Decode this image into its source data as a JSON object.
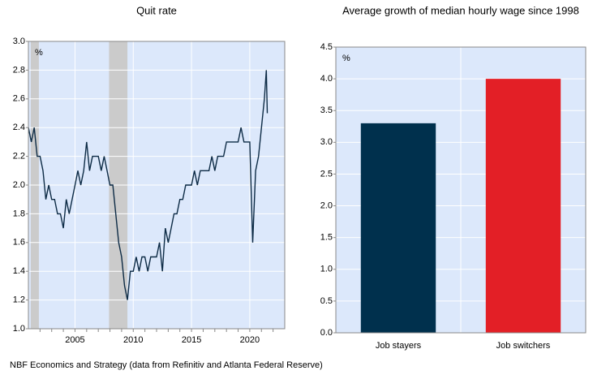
{
  "chart_data": [
    {
      "type": "line",
      "title": "Quit rate",
      "unit_label": "%",
      "xlim": [
        2001,
        2023
      ],
      "xticks": [
        2005,
        2010,
        2015,
        2020
      ],
      "xminor_ticks": [
        2002,
        2003,
        2004,
        2005,
        2006,
        2007,
        2008,
        2009,
        2010,
        2011,
        2012,
        2013,
        2014,
        2015,
        2016,
        2017,
        2018,
        2019,
        2020,
        2021,
        2022
      ],
      "ylim": [
        1,
        3
      ],
      "yticks": [
        {
          "value": 1,
          "label": "1.0"
        },
        1.2,
        1.4,
        1.6,
        1.8,
        {
          "value": 2,
          "label": "2.0"
        },
        2.2,
        2.4,
        2.6,
        2.8,
        {
          "value": 3,
          "label": "3.0"
        }
      ],
      "grid": true,
      "background": "#dce8fb",
      "shaded_spans": [
        [
          2001.2,
          2001.9
        ],
        [
          2007.92,
          2009.5
        ]
      ],
      "shade_color": "#cbcbcb",
      "series": [
        {
          "color": "#0d2b45",
          "x": [
            2001.0,
            2001.25,
            2001.5,
            2001.75,
            2002.0,
            2002.25,
            2002.5,
            2002.75,
            2003.0,
            2003.25,
            2003.5,
            2003.75,
            2004.0,
            2004.25,
            2004.5,
            2004.75,
            2005.0,
            2005.25,
            2005.5,
            2005.75,
            2006.0,
            2006.25,
            2006.5,
            2006.75,
            2007.0,
            2007.25,
            2007.5,
            2007.75,
            2008.0,
            2008.25,
            2008.5,
            2008.75,
            2009.0,
            2009.25,
            2009.5,
            2009.75,
            2010.0,
            2010.25,
            2010.5,
            2010.75,
            2011.0,
            2011.25,
            2011.5,
            2011.75,
            2012.0,
            2012.25,
            2012.5,
            2012.75,
            2013.0,
            2013.25,
            2013.5,
            2013.75,
            2014.0,
            2014.25,
            2014.5,
            2014.75,
            2015.0,
            2015.25,
            2015.5,
            2015.75,
            2016.0,
            2016.25,
            2016.5,
            2016.75,
            2017.0,
            2017.25,
            2017.5,
            2017.75,
            2018.0,
            2018.25,
            2018.5,
            2018.75,
            2019.0,
            2019.25,
            2019.5,
            2019.75,
            2020.0,
            2020.25,
            2020.5,
            2020.75,
            2021.0,
            2021.25,
            2021.42,
            2021.5
          ],
          "values": [
            2.4,
            2.3,
            2.4,
            2.2,
            2.2,
            2.1,
            1.9,
            2.0,
            1.9,
            1.9,
            1.8,
            1.8,
            1.7,
            1.9,
            1.8,
            1.9,
            2.0,
            2.1,
            2.0,
            2.1,
            2.3,
            2.1,
            2.2,
            2.2,
            2.2,
            2.1,
            2.2,
            2.1,
            2.0,
            2.0,
            1.8,
            1.6,
            1.5,
            1.3,
            1.2,
            1.4,
            1.4,
            1.5,
            1.4,
            1.5,
            1.5,
            1.4,
            1.5,
            1.5,
            1.5,
            1.6,
            1.4,
            1.7,
            1.6,
            1.7,
            1.8,
            1.8,
            1.9,
            1.9,
            2.0,
            2.0,
            2.0,
            2.1,
            2.0,
            2.1,
            2.1,
            2.1,
            2.1,
            2.2,
            2.1,
            2.2,
            2.2,
            2.2,
            2.3,
            2.3,
            2.3,
            2.3,
            2.3,
            2.4,
            2.3,
            2.3,
            2.3,
            1.6,
            2.1,
            2.2,
            2.4,
            2.6,
            2.8,
            2.5
          ]
        }
      ]
    },
    {
      "type": "bar",
      "title": "Average growth of median hourly wage since 1998",
      "unit_label": "%",
      "categories": [
        "Job stayers",
        "Job switchers"
      ],
      "values": [
        3.3,
        4.0
      ],
      "colors": [
        "#00304d",
        "#e31f26"
      ],
      "ylim": [
        0,
        4.5
      ],
      "yticks": [
        {
          "value": 0,
          "label": "0.0"
        },
        0.5,
        {
          "value": 1,
          "label": "1.0"
        },
        1.5,
        {
          "value": 2,
          "label": "2.0"
        },
        2.5,
        {
          "value": 3,
          "label": "3.0"
        },
        3.5,
        {
          "value": 4,
          "label": "4.0"
        },
        4.5
      ],
      "grid": true,
      "background": "#dce8fb"
    }
  ],
  "source": "NBF Economics and Strategy (data from Refinitiv and Atlanta Federal Reserve)"
}
